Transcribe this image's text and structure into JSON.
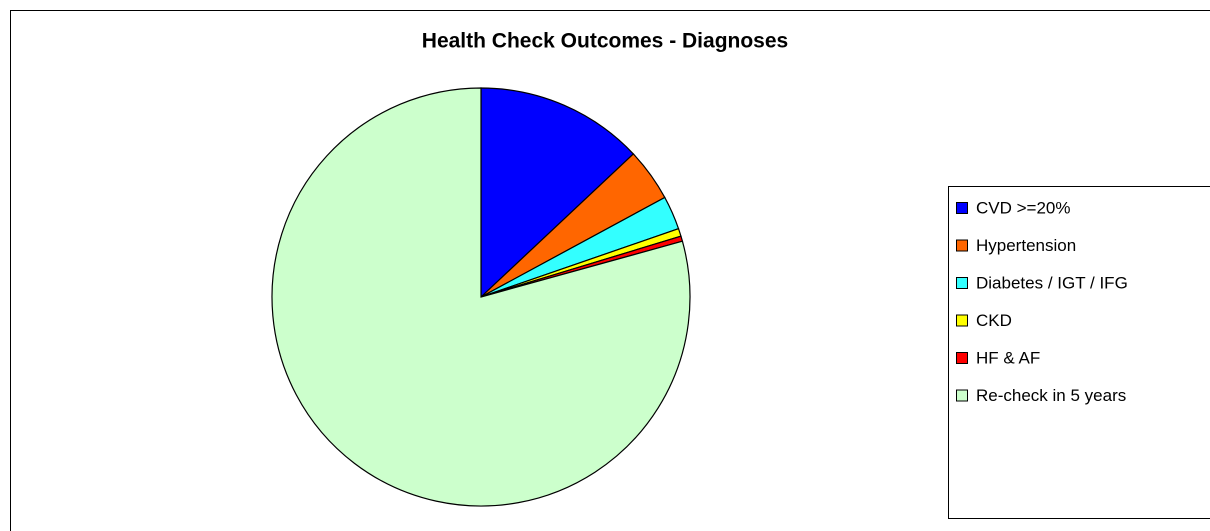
{
  "chart_data": {
    "type": "pie",
    "title": "Health Check Outcomes  -  Diagnoses",
    "categories": [
      "CVD >=20%",
      "Hypertension",
      "Diabetes / IGT / IFG",
      "CKD",
      "HF & AF",
      "Re-check in 5 years"
    ],
    "values": [
      13,
      4.1,
      2.6,
      0.6,
      0.4,
      79.3
    ],
    "colors": [
      "#0000ff",
      "#ff6600",
      "#33ffff",
      "#ffff00",
      "#ff0000",
      "#ccffcc"
    ],
    "legend": "right"
  }
}
